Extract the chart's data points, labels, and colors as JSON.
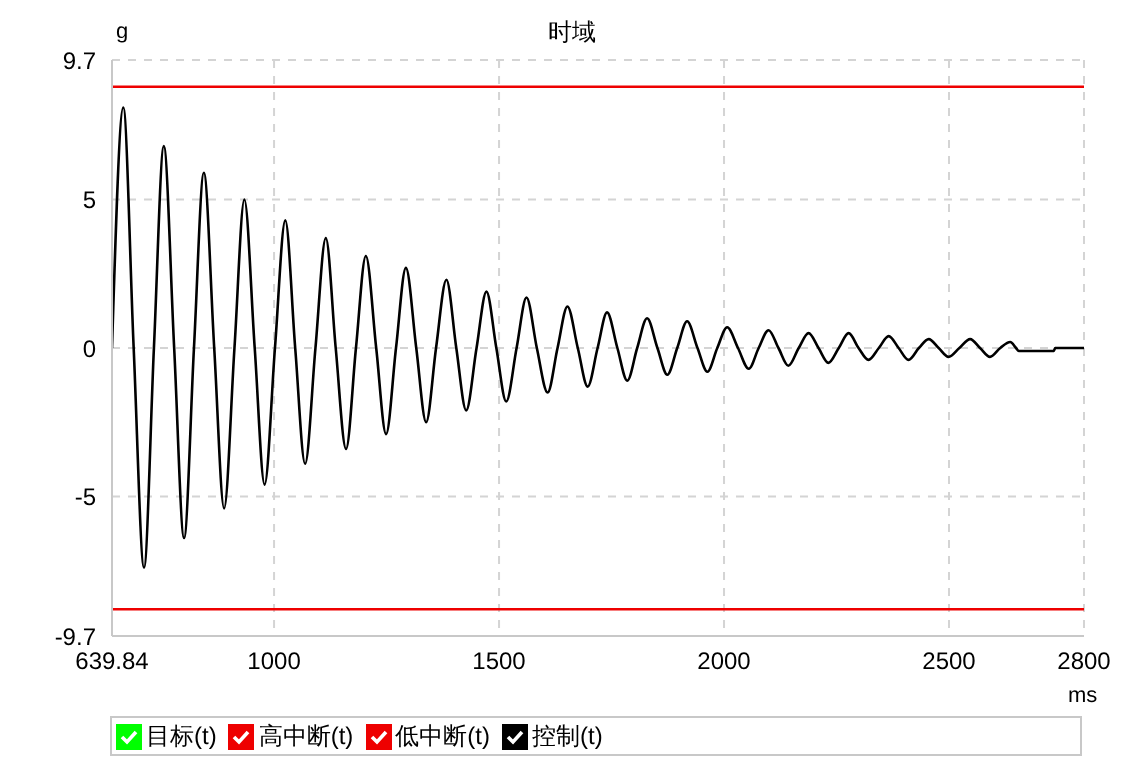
{
  "chart_data": {
    "type": "line",
    "title": "时域",
    "xlabel": "ms",
    "ylabel": "g",
    "xlim": [
      639.84,
      2800
    ],
    "xticks": [
      639.84,
      1000,
      1500,
      2000,
      2500,
      2800
    ],
    "ylim": [
      -9.7,
      9.7
    ],
    "yticks": [
      9.7,
      5,
      0,
      -5,
      -9.7
    ],
    "grid": true,
    "legend": "bottom",
    "marker": "none",
    "line_style": "solid",
    "series": [
      {
        "name": "目标(t)",
        "color": "#00ff00"
      },
      {
        "name": "高中断(t)",
        "color": "#ee0000",
        "x": [
          639.84,
          2800
        ],
        "values": [
          8.8,
          8.8
        ]
      },
      {
        "name": "低中断(t)",
        "color": "#ee0000",
        "x": [
          639.84,
          2800
        ],
        "values": [
          -8.8,
          -8.8
        ]
      },
      {
        "name": "控制(t)",
        "color": "#000000",
        "x": [
          639.84,
          665,
          688,
          711,
          733,
          755,
          778,
          800,
          822,
          844,
          867,
          889,
          912,
          934,
          957,
          979,
          1002,
          1025,
          1047,
          1069,
          1092,
          1115,
          1137,
          1160,
          1182,
          1204,
          1227,
          1249,
          1271,
          1293,
          1316,
          1338,
          1360,
          1383,
          1405,
          1427,
          1450,
          1472,
          1494,
          1516,
          1539,
          1561,
          1584,
          1608,
          1630,
          1652,
          1675,
          1697,
          1719,
          1740,
          1763,
          1785,
          1807,
          1829,
          1852,
          1874,
          1896,
          1918,
          1941,
          1963,
          1985,
          2007,
          2031,
          2055,
          2077,
          2099,
          2121,
          2143,
          2166,
          2188,
          2210,
          2232,
          2255,
          2277,
          2299,
          2321,
          2344,
          2366,
          2388,
          2410,
          2433,
          2455,
          2477,
          2499,
          2523,
          2547,
          2569,
          2591,
          2614,
          2636,
          2649,
          2655,
          2733,
          2736,
          2800
        ],
        "values": [
          0,
          8.1,
          0,
          -7.4,
          0,
          6.8,
          0,
          -6.4,
          0,
          5.9,
          0,
          -5.4,
          0,
          5.0,
          0,
          -4.6,
          0,
          4.3,
          0,
          -3.9,
          0,
          3.7,
          0,
          -3.4,
          0,
          3.1,
          0,
          -2.9,
          0,
          2.7,
          0,
          -2.5,
          0,
          2.3,
          0,
          -2.1,
          0,
          1.9,
          0,
          -1.8,
          0,
          1.7,
          0,
          -1.5,
          0,
          1.4,
          0,
          -1.3,
          0,
          1.2,
          0,
          -1.1,
          0,
          1.0,
          0,
          -0.9,
          0,
          0.9,
          0,
          -0.8,
          0,
          0.7,
          0,
          -0.7,
          0,
          0.6,
          0,
          -0.6,
          0,
          0.5,
          0,
          -0.5,
          0,
          0.5,
          0,
          -0.4,
          0,
          0.4,
          0,
          -0.4,
          0,
          0.3,
          0,
          -0.3,
          0,
          0.3,
          0,
          -0.3,
          0,
          0.2,
          0,
          -0.1,
          -0.1,
          0,
          0
        ]
      }
    ]
  }
}
